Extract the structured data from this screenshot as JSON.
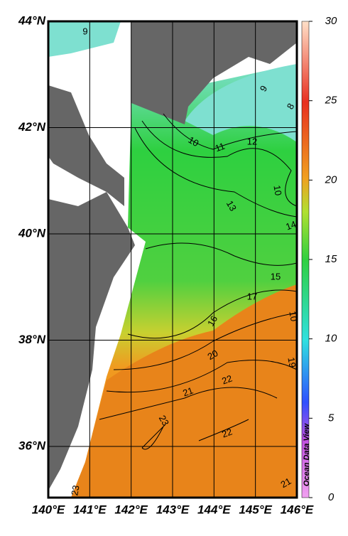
{
  "map": {
    "lat_labels": [
      "44°N",
      "42°N",
      "40°N",
      "38°N",
      "36°N"
    ],
    "lon_labels": [
      "140°E",
      "141°E",
      "142°E",
      "143°E",
      "144°E",
      "145°E",
      "146°E"
    ],
    "contour_labels": [
      9,
      9,
      8,
      10,
      11,
      12,
      10,
      13,
      14,
      15,
      17,
      16,
      10,
      20,
      19,
      22,
      21,
      23,
      22,
      21,
      23
    ],
    "colorbar": {
      "range": [
        0,
        30
      ],
      "ticks": [
        0,
        5,
        10,
        15,
        20,
        25,
        30
      ]
    },
    "watermark": "Ocean Data View"
  }
}
